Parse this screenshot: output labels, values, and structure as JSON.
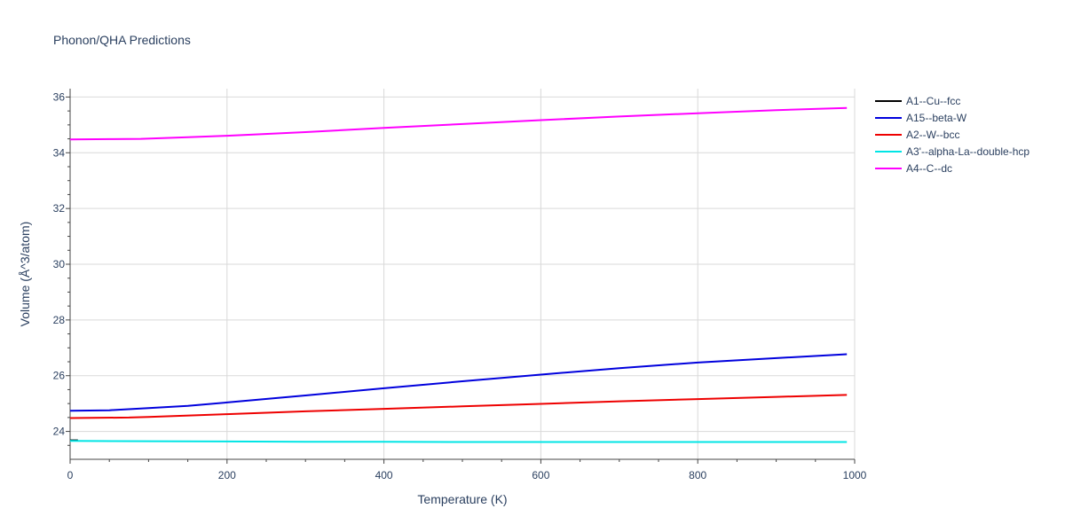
{
  "chart_data": {
    "type": "line",
    "title": "Phonon/QHA Predictions",
    "xlabel": "Temperature (K)",
    "ylabel": "Volume (Å^3/atom)",
    "xlim": [
      0,
      1000
    ],
    "ylim": [
      23.0,
      36.3
    ],
    "x_ticks": [
      "0",
      "200",
      "400",
      "600",
      "800",
      "1000"
    ],
    "y_ticks": [
      "24",
      "26",
      "28",
      "30",
      "32",
      "34",
      "36"
    ],
    "grid": true,
    "legend_position": "top-right",
    "series": [
      {
        "name": "A1--Cu--fcc",
        "color": "#000000",
        "x": [
          0,
          10
        ],
        "y": [
          23.68,
          23.68
        ]
      },
      {
        "name": "A15--beta-W",
        "color": "#0000dd",
        "x": [
          0,
          50,
          100,
          150,
          200,
          300,
          400,
          500,
          600,
          700,
          800,
          900,
          990
        ],
        "y": [
          24.74,
          24.76,
          24.84,
          24.92,
          25.04,
          25.29,
          25.55,
          25.8,
          26.04,
          26.27,
          26.47,
          26.63,
          26.77
        ]
      },
      {
        "name": "A2--W--bcc",
        "color": "#ee0000",
        "x": [
          0,
          75,
          100,
          200,
          300,
          400,
          500,
          600,
          700,
          800,
          900,
          990
        ],
        "y": [
          24.48,
          24.5,
          24.52,
          24.62,
          24.72,
          24.81,
          24.9,
          24.99,
          25.08,
          25.16,
          25.24,
          25.31
        ]
      },
      {
        "name": "A3'--alpha-La--double-hcp",
        "color": "#00e5e5",
        "x": [
          0,
          100,
          200,
          300,
          400,
          500,
          600,
          700,
          800,
          900,
          990
        ],
        "y": [
          23.66,
          23.65,
          23.64,
          23.63,
          23.63,
          23.62,
          23.62,
          23.62,
          23.62,
          23.62,
          23.62
        ]
      },
      {
        "name": "A4--C--dc",
        "color": "#ff00ff",
        "x": [
          0,
          50,
          90,
          150,
          200,
          300,
          400,
          500,
          600,
          700,
          800,
          900,
          990
        ],
        "y": [
          34.48,
          34.49,
          34.5,
          34.56,
          34.61,
          34.74,
          34.89,
          35.03,
          35.17,
          35.3,
          35.42,
          35.53,
          35.61
        ]
      }
    ]
  }
}
